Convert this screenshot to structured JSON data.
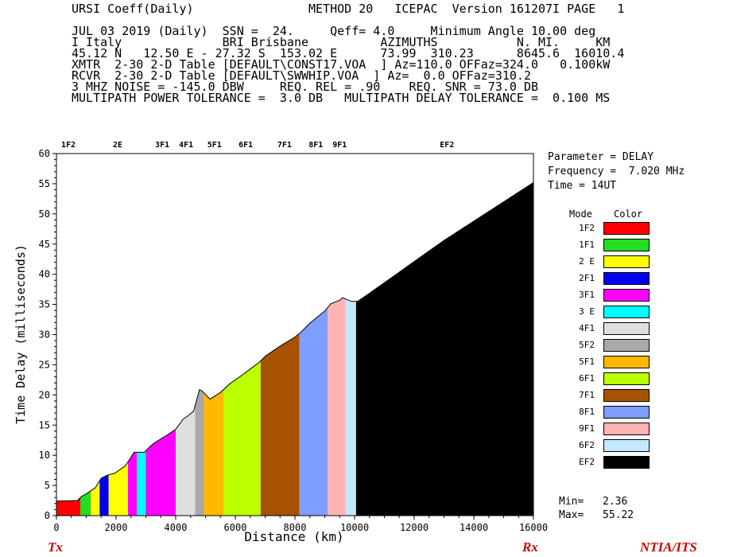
{
  "header": {
    "line1_left": "URSI Coeff(Daily)",
    "line1_right": "METHOD 20   ICEPAC  Version 161207I PAGE   1",
    "lines": [
      "JUL 03 2019 (Daily)  SSN =  24.     Qeff= 4.0     Minimum Angle 10.00 deg",
      "I Italy              BRI Brisbane          AZIMUTHS           N. MI.     KM",
      "45.12 N   12.50 E - 27.32 S  153.02 E      73.99  310.23      8645.6  16010.4",
      "XMTR  2-30 2-D Table [DEFAULT\\CONST17.VOA  ] Az=110.0 OFFaz=324.0   0.100kW",
      "RCVR  2-30 2-D Table [DEFAULT\\SWWHIP.VOA  ] Az=  0.0 OFFaz=310.2",
      "3 MHZ NOISE = -145.0 DBW     REQ. REL = .90    REQ. SNR = 73.0 DB",
      "MULTIPATH POWER TOLERANCE =  3.0 DB   MULTIPATH DELAY TOLERANCE =  0.100 MS"
    ]
  },
  "parameters": {
    "parameter": "Parameter = DELAY",
    "frequency": "Frequency =  7.020 MHz",
    "time": "Time = 14UT"
  },
  "legend": {
    "mode_header": "Mode",
    "color_header": "Color",
    "items": [
      {
        "mode": "1F2",
        "color": "#ff0000"
      },
      {
        "mode": "1F1",
        "color": "#22dd22"
      },
      {
        "mode": "2 E",
        "color": "#ffff00"
      },
      {
        "mode": "2F1",
        "color": "#0000ee"
      },
      {
        "mode": "3F1",
        "color": "#ff00ff"
      },
      {
        "mode": "3 E",
        "color": "#00ffff"
      },
      {
        "mode": "4F1",
        "color": "#dedede"
      },
      {
        "mode": "5F2",
        "color": "#a9a9a9"
      },
      {
        "mode": "5F1",
        "color": "#ffb800"
      },
      {
        "mode": "6F1",
        "color": "#bbff00"
      },
      {
        "mode": "7F1",
        "color": "#a65200"
      },
      {
        "mode": "8F1",
        "color": "#7f9cff"
      },
      {
        "mode": "9F1",
        "color": "#ffb3b3"
      },
      {
        "mode": "6F2",
        "color": "#c4e8ff"
      },
      {
        "mode": "EF2",
        "color": "#000000"
      }
    ]
  },
  "stats": {
    "min_label": "Min=",
    "min_value": "2.36",
    "max_label": "Max=",
    "max_value": "55.22"
  },
  "footer": {
    "tx": "Tx",
    "rx": "Rx",
    "brand": "NTIA/ITS"
  },
  "chart_data": {
    "type": "area",
    "xlabel": "Distance (km)",
    "ylabel": "Time Delay (milliseconds)",
    "xlim": [
      0,
      16000
    ],
    "ylim": [
      0,
      60
    ],
    "x_ticks": [
      0,
      2000,
      4000,
      6000,
      8000,
      10000,
      12000,
      14000,
      16000
    ],
    "y_ticks": [
      0,
      5,
      10,
      15,
      20,
      25,
      30,
      35,
      40,
      45,
      50,
      55,
      60
    ],
    "top_mode_labels": [
      {
        "label": "1F2",
        "x": 400
      },
      {
        "label": "2E",
        "x": 2050
      },
      {
        "label": "3F1",
        "x": 3550
      },
      {
        "label": "4F1",
        "x": 4350
      },
      {
        "label": "5F1",
        "x": 5300
      },
      {
        "label": "6F1",
        "x": 6350
      },
      {
        "label": "7F1",
        "x": 7650
      },
      {
        "label": "8F1",
        "x": 8700
      },
      {
        "label": "9F1",
        "x": 9500
      },
      {
        "label": "EF2",
        "x": 13100
      }
    ],
    "curve": [
      [
        0,
        2.4
      ],
      [
        700,
        2.5
      ],
      [
        850,
        3.2
      ],
      [
        1000,
        3.6
      ],
      [
        1300,
        4.6
      ],
      [
        1500,
        6.2
      ],
      [
        1700,
        6.7
      ],
      [
        1950,
        7.0
      ],
      [
        2300,
        8.2
      ],
      [
        2450,
        9.3
      ],
      [
        2600,
        10.5
      ],
      [
        2950,
        10.5
      ],
      [
        3150,
        11.5
      ],
      [
        3300,
        12.1
      ],
      [
        3700,
        13.3
      ],
      [
        4000,
        14.3
      ],
      [
        4250,
        16.0
      ],
      [
        4400,
        16.5
      ],
      [
        4600,
        17.3
      ],
      [
        4800,
        20.9
      ],
      [
        4900,
        20.6
      ],
      [
        5150,
        19.3
      ],
      [
        5500,
        20.4
      ],
      [
        5800,
        21.8
      ],
      [
        6200,
        23.2
      ],
      [
        6500,
        24.3
      ],
      [
        6800,
        25.4
      ],
      [
        7000,
        26.4
      ],
      [
        7500,
        28.1
      ],
      [
        8000,
        29.6
      ],
      [
        8200,
        30.4
      ],
      [
        8500,
        31.9
      ],
      [
        9000,
        33.9
      ],
      [
        9200,
        35.1
      ],
      [
        9500,
        35.7
      ],
      [
        9600,
        36.1
      ],
      [
        9900,
        35.5
      ],
      [
        10100,
        35.5
      ],
      [
        10400,
        36.5
      ],
      [
        11000,
        38.6
      ],
      [
        12000,
        42.1
      ],
      [
        13000,
        45.6
      ],
      [
        14000,
        48.8
      ],
      [
        15000,
        52.0
      ],
      [
        16000,
        55.2
      ]
    ],
    "segments": [
      {
        "mode": "1F2",
        "x0": 0,
        "x1": 800,
        "color": "#ff0000"
      },
      {
        "mode": "1F1",
        "x0": 800,
        "x1": 1150,
        "color": "#22dd22"
      },
      {
        "mode": "2 E",
        "x0": 1150,
        "x1": 1450,
        "color": "#ffff00"
      },
      {
        "mode": "2F1",
        "x0": 1450,
        "x1": 1750,
        "color": "#0000ee"
      },
      {
        "mode": "2 E",
        "x0": 1750,
        "x1": 2400,
        "color": "#ffff00"
      },
      {
        "mode": "3F1",
        "x0": 2400,
        "x1": 2700,
        "color": "#ff00ff"
      },
      {
        "mode": "3 E",
        "x0": 2700,
        "x1": 3000,
        "color": "#00ffff"
      },
      {
        "mode": "3F1",
        "x0": 3000,
        "x1": 4000,
        "color": "#ff00ff"
      },
      {
        "mode": "4F1",
        "x0": 4000,
        "x1": 4650,
        "color": "#dedede"
      },
      {
        "mode": "5F2",
        "x0": 4650,
        "x1": 4950,
        "color": "#a9a9a9"
      },
      {
        "mode": "5F1",
        "x0": 4950,
        "x1": 5600,
        "color": "#ffb800"
      },
      {
        "mode": "6F1",
        "x0": 5600,
        "x1": 6850,
        "color": "#bbff00"
      },
      {
        "mode": "7F1",
        "x0": 6850,
        "x1": 8150,
        "color": "#a65200"
      },
      {
        "mode": "8F1",
        "x0": 8150,
        "x1": 9100,
        "color": "#7f9cff"
      },
      {
        "mode": "9F1",
        "x0": 9100,
        "x1": 9700,
        "color": "#ffb3b3"
      },
      {
        "mode": "6F2",
        "x0": 9700,
        "x1": 10050,
        "color": "#c4e8ff"
      },
      {
        "mode": "EF2",
        "x0": 10050,
        "x1": 16000,
        "color": "#000000"
      }
    ]
  }
}
